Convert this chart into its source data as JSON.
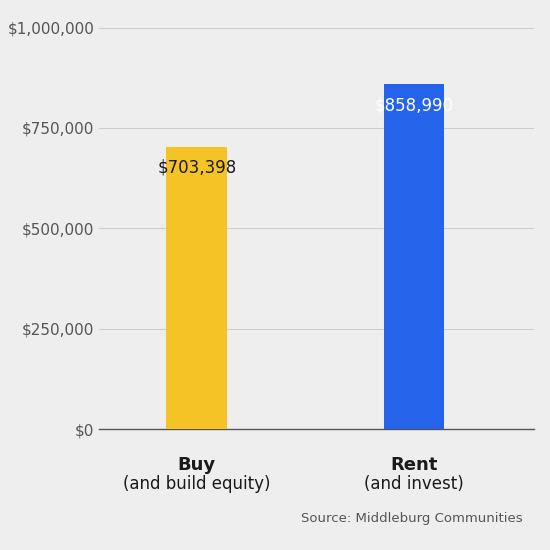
{
  "categories_line1": [
    "Buy",
    "Rent"
  ],
  "categories_line2": [
    "(and build equity)",
    "(and invest)"
  ],
  "values": [
    703398,
    858990
  ],
  "bar_colors": [
    "#F5C325",
    "#2563EB"
  ],
  "bar_labels": [
    "$703,398",
    "$858,990"
  ],
  "label_colors": [
    "#1a1a1a",
    "#ffffff"
  ],
  "ylim": [
    0,
    1000000
  ],
  "yticks": [
    0,
    250000,
    500000,
    750000,
    1000000
  ],
  "ytick_labels": [
    "$0",
    "$250,000",
    "$500,000",
    "$750,000",
    "$1,000,000"
  ],
  "source_text": "Source: Middleburg Communities",
  "background_color": "#eeeeee",
  "label_fontsize": 12,
  "tick_fontsize": 11,
  "source_fontsize": 9.5,
  "bar_label_fontsize": 12,
  "bar_width": 0.28,
  "x_positions": [
    1,
    2
  ],
  "xlim": [
    0.55,
    2.55
  ]
}
